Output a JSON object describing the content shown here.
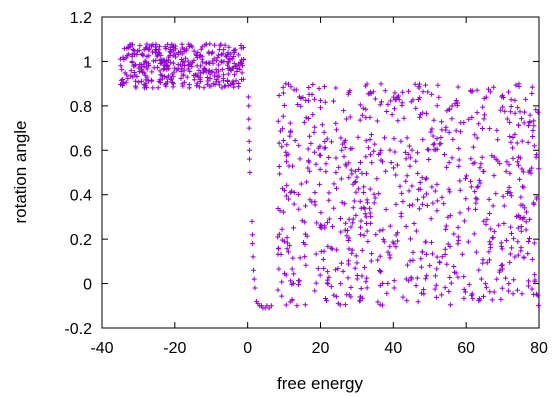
{
  "chart_data": {
    "type": "scatter",
    "title": "",
    "xlabel": "free energy",
    "ylabel": "rotation angle",
    "xlim": [
      -40,
      80
    ],
    "ylim": [
      -0.2,
      1.2
    ],
    "xticks": [
      -40,
      -20,
      0,
      20,
      40,
      60,
      80
    ],
    "yticks": [
      -0.2,
      0,
      0.2,
      0.4,
      0.6,
      0.8,
      1,
      1.2
    ],
    "xtick_labels": [
      "-40",
      "-20",
      "0",
      "20",
      "40",
      "60",
      "80"
    ],
    "ytick_labels": [
      "-0.2",
      "0",
      "0.2",
      "0.4",
      "0.6",
      "0.8",
      "1",
      "1.2"
    ],
    "grid": false,
    "legend": "none",
    "marker": "plus",
    "color": "#9400d3",
    "series": [
      {
        "regions": [
          {
            "x_range": [
              -35,
              -1
            ],
            "y_range": [
              0.88,
              1.08
            ],
            "count": 380
          },
          {
            "x_range": [
              8,
              80
            ],
            "y_range": [
              -0.1,
              0.9
            ],
            "count": 820
          }
        ],
        "points": [
          [
            0.2,
            0.84
          ],
          [
            0.3,
            0.8
          ],
          [
            0.3,
            0.74
          ],
          [
            0.4,
            0.7
          ],
          [
            0.4,
            0.64
          ],
          [
            0.5,
            0.6
          ],
          [
            0.5,
            0.56
          ],
          [
            0.6,
            0.5
          ],
          [
            1.2,
            0.28
          ],
          [
            1.3,
            0.22
          ],
          [
            1.3,
            0.18
          ],
          [
            1.5,
            0.12
          ],
          [
            1.6,
            0.06
          ],
          [
            1.8,
            0.02
          ],
          [
            2.0,
            -0.02
          ],
          [
            2.4,
            -0.08
          ],
          [
            2.8,
            -0.09
          ],
          [
            3.3,
            -0.1
          ],
          [
            3.8,
            -0.1
          ],
          [
            4.2,
            -0.11
          ],
          [
            4.8,
            -0.11
          ],
          [
            5.3,
            -0.1
          ],
          [
            5.9,
            -0.11
          ],
          [
            6.5,
            -0.1
          ]
        ]
      }
    ]
  }
}
